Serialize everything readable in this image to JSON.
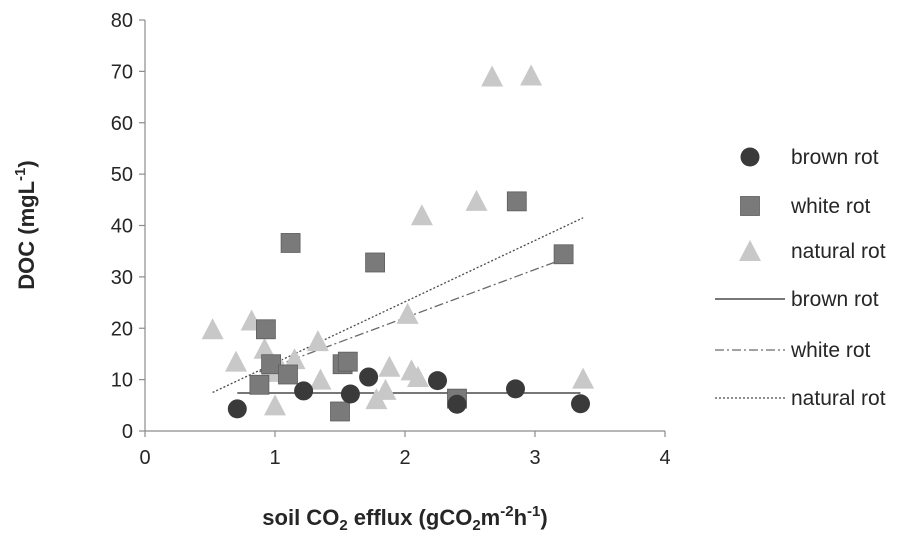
{
  "chart_data": {
    "type": "scatter",
    "xlabel_main": "soil CO",
    "xlabel_sub": "2",
    "xlabel_mid": " efflux (gCO",
    "xlabel_sub2": "2",
    "xlabel_mid2": "m",
    "xlabel_sup": "-2",
    "xlabel_mid3": "h",
    "xlabel_sup2": "-1",
    "xlabel_end": ")",
    "ylabel_main": "DOC (mgL",
    "ylabel_sup": "-1",
    "ylabel_end": ")",
    "xlim": [
      0,
      4
    ],
    "ylim": [
      0,
      80
    ],
    "xticks": [
      "0",
      "1",
      "2",
      "3",
      "4"
    ],
    "yticks": [
      "0",
      "10",
      "20",
      "30",
      "40",
      "50",
      "60",
      "70",
      "80"
    ],
    "grid": false,
    "legend_position": "right",
    "series": [
      {
        "name": "brown rot",
        "marker": "circle",
        "color": "#3a3a3a",
        "points": [
          [
            0.71,
            4.3
          ],
          [
            1.22,
            7.8
          ],
          [
            1.58,
            7.2
          ],
          [
            1.72,
            10.5
          ],
          [
            2.25,
            9.8
          ],
          [
            2.4,
            5.2
          ],
          [
            2.85,
            8.2
          ],
          [
            3.35,
            5.3
          ]
        ]
      },
      {
        "name": "white rot",
        "marker": "square",
        "color": "#7a7a7a",
        "points": [
          [
            0.88,
            9.0
          ],
          [
            0.93,
            19.8
          ],
          [
            0.97,
            13.0
          ],
          [
            1.1,
            11.0
          ],
          [
            1.12,
            36.6
          ],
          [
            1.5,
            3.8
          ],
          [
            1.52,
            13.0
          ],
          [
            1.56,
            13.5
          ],
          [
            1.77,
            32.8
          ],
          [
            2.4,
            6.3
          ],
          [
            2.86,
            44.7
          ],
          [
            3.22,
            34.4
          ]
        ]
      },
      {
        "name": "natural rot",
        "marker": "triangle",
        "color": "#c8c8c8",
        "points": [
          [
            0.52,
            19.8
          ],
          [
            0.7,
            13.5
          ],
          [
            0.82,
            21.5
          ],
          [
            0.92,
            16.0
          ],
          [
            0.95,
            11.5
          ],
          [
            1.0,
            5.0
          ],
          [
            1.05,
            12.0
          ],
          [
            1.15,
            14.0
          ],
          [
            1.33,
            17.5
          ],
          [
            1.35,
            10.0
          ],
          [
            1.78,
            6.2
          ],
          [
            1.85,
            8.0
          ],
          [
            1.88,
            12.5
          ],
          [
            2.02,
            22.8
          ],
          [
            2.05,
            11.8
          ],
          [
            2.1,
            10.5
          ],
          [
            2.13,
            42.0
          ],
          [
            2.55,
            44.8
          ],
          [
            2.67,
            69.0
          ],
          [
            2.97,
            69.2
          ],
          [
            3.37,
            10.2
          ]
        ]
      }
    ],
    "trendlines": [
      {
        "name": "brown rot",
        "style": "solid",
        "color": "#262626",
        "x": [
          0.71,
          3.35
        ],
        "y": [
          7.4,
          7.4
        ]
      },
      {
        "name": "white rot",
        "style": "dash-dot",
        "color": "#6a6a6a",
        "x": [
          0.88,
          3.22
        ],
        "y": [
          11.5,
          33.5
        ]
      },
      {
        "name": "natural rot",
        "style": "dotted",
        "color": "#4a4a4a",
        "x": [
          0.52,
          3.37
        ],
        "y": [
          7.5,
          41.5
        ]
      }
    ],
    "legend": [
      {
        "label": "brown rot",
        "kind": "marker",
        "marker": "circle",
        "color": "#3a3a3a"
      },
      {
        "label": "white rot",
        "kind": "marker",
        "marker": "square",
        "color": "#7a7a7a"
      },
      {
        "label": "natural rot",
        "kind": "marker",
        "marker": "triangle",
        "color": "#c8c8c8"
      },
      {
        "label": "brown rot",
        "kind": "line",
        "style": "solid",
        "color": "#262626"
      },
      {
        "label": "white rot",
        "kind": "line",
        "style": "dash-dot",
        "color": "#6a6a6a"
      },
      {
        "label": "natural rot",
        "kind": "line",
        "style": "dotted",
        "color": "#4a4a4a"
      }
    ]
  }
}
